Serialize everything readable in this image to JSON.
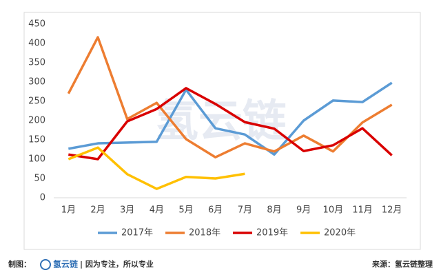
{
  "chart_data": {
    "type": "line",
    "categories": [
      "1月",
      "2月",
      "3月",
      "4月",
      "5月",
      "6月",
      "7月",
      "8月",
      "9月",
      "10月",
      "11月",
      "12月"
    ],
    "series": [
      {
        "name": "2017年",
        "color": "#5b9bd5",
        "values": [
          127,
          141,
          143,
          145,
          280,
          180,
          164,
          112,
          200,
          252,
          248,
          298
        ]
      },
      {
        "name": "2018年",
        "color": "#ed7d31",
        "values": [
          270,
          416,
          204,
          246,
          152,
          105,
          141,
          120,
          161,
          120,
          195,
          241
        ]
      },
      {
        "name": "2019年",
        "color": "#d90000",
        "values": [
          112,
          100,
          198,
          230,
          284,
          243,
          196,
          179,
          121,
          136,
          180,
          110
        ]
      },
      {
        "name": "2020年",
        "color": "#ffc000",
        "values": [
          100,
          130,
          61,
          23,
          54,
          50,
          62,
          null,
          null,
          null,
          null,
          null
        ]
      }
    ],
    "ylim": [
      0,
      450
    ],
    "yticks": [
      0,
      50,
      100,
      150,
      200,
      250,
      300,
      350,
      400,
      450
    ],
    "grid": false,
    "legend": "bottom",
    "watermark": "氢云链"
  },
  "footer": {
    "left_label": "制图：",
    "brand": "氢云链",
    "slogan": "| 因为专注，所以专业",
    "source": "来源：氢云链整理"
  }
}
